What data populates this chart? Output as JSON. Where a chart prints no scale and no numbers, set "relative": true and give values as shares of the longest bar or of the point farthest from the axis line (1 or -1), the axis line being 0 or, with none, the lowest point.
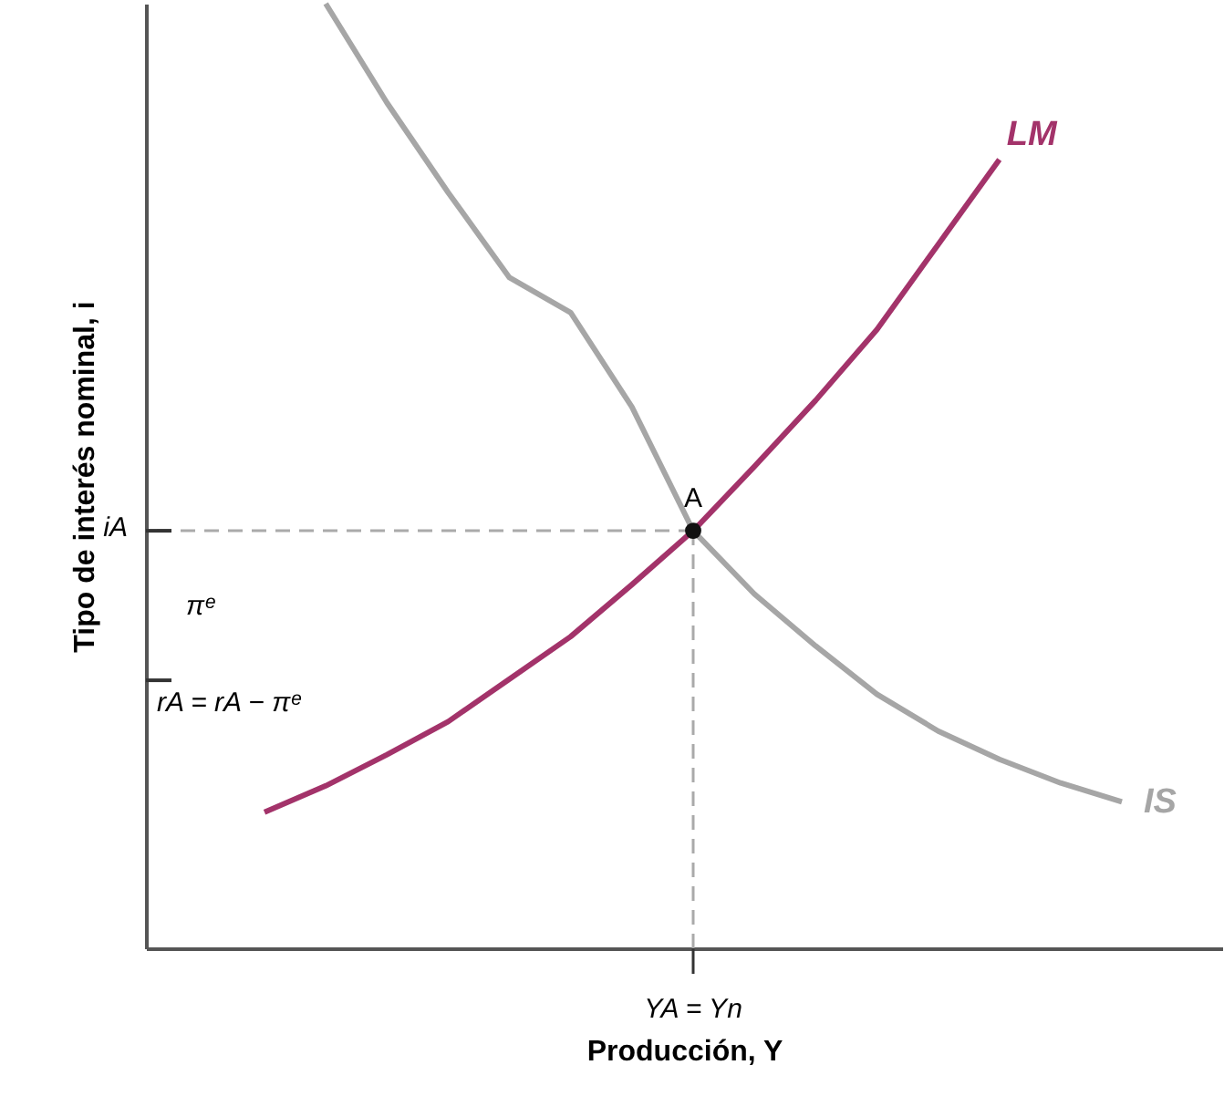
{
  "chart_data": {
    "type": "line",
    "relative": true,
    "xlabel": "Producción, Y",
    "ylabel": "Tipo de interés nominal, i",
    "grid": false,
    "line_style": "solid",
    "categories": [
      null,
      null,
      null,
      null,
      null,
      null,
      null,
      null,
      null,
      null,
      null,
      null,
      null,
      null,
      null
    ],
    "series": [
      {
        "name": "IS",
        "color": "#a6a6a6",
        "values": [
          null,
          1.0,
          0.895,
          0.8,
          0.71,
          0.673,
          0.573,
          0.442,
          0.375,
          0.32,
          0.269,
          0.23,
          0.2,
          0.175,
          0.155
        ]
      },
      {
        "name": "LM",
        "color": "#a3336a",
        "values": [
          0.144,
          0.172,
          0.205,
          0.24,
          0.285,
          0.33,
          0.385,
          0.442,
          0.51,
          0.58,
          0.655,
          0.745,
          0.835,
          null,
          null
        ]
      }
    ],
    "ref_lines": [
      {
        "axis": "y",
        "value": 0.442,
        "label": "iA",
        "color": "#aaaaaa",
        "line_style": "dashed"
      }
    ],
    "annotations": [
      {
        "text": "A",
        "y": 0.442
      },
      "YA = Yn",
      "πᵉ",
      "rA = rA − πᵉ"
    ]
  }
}
